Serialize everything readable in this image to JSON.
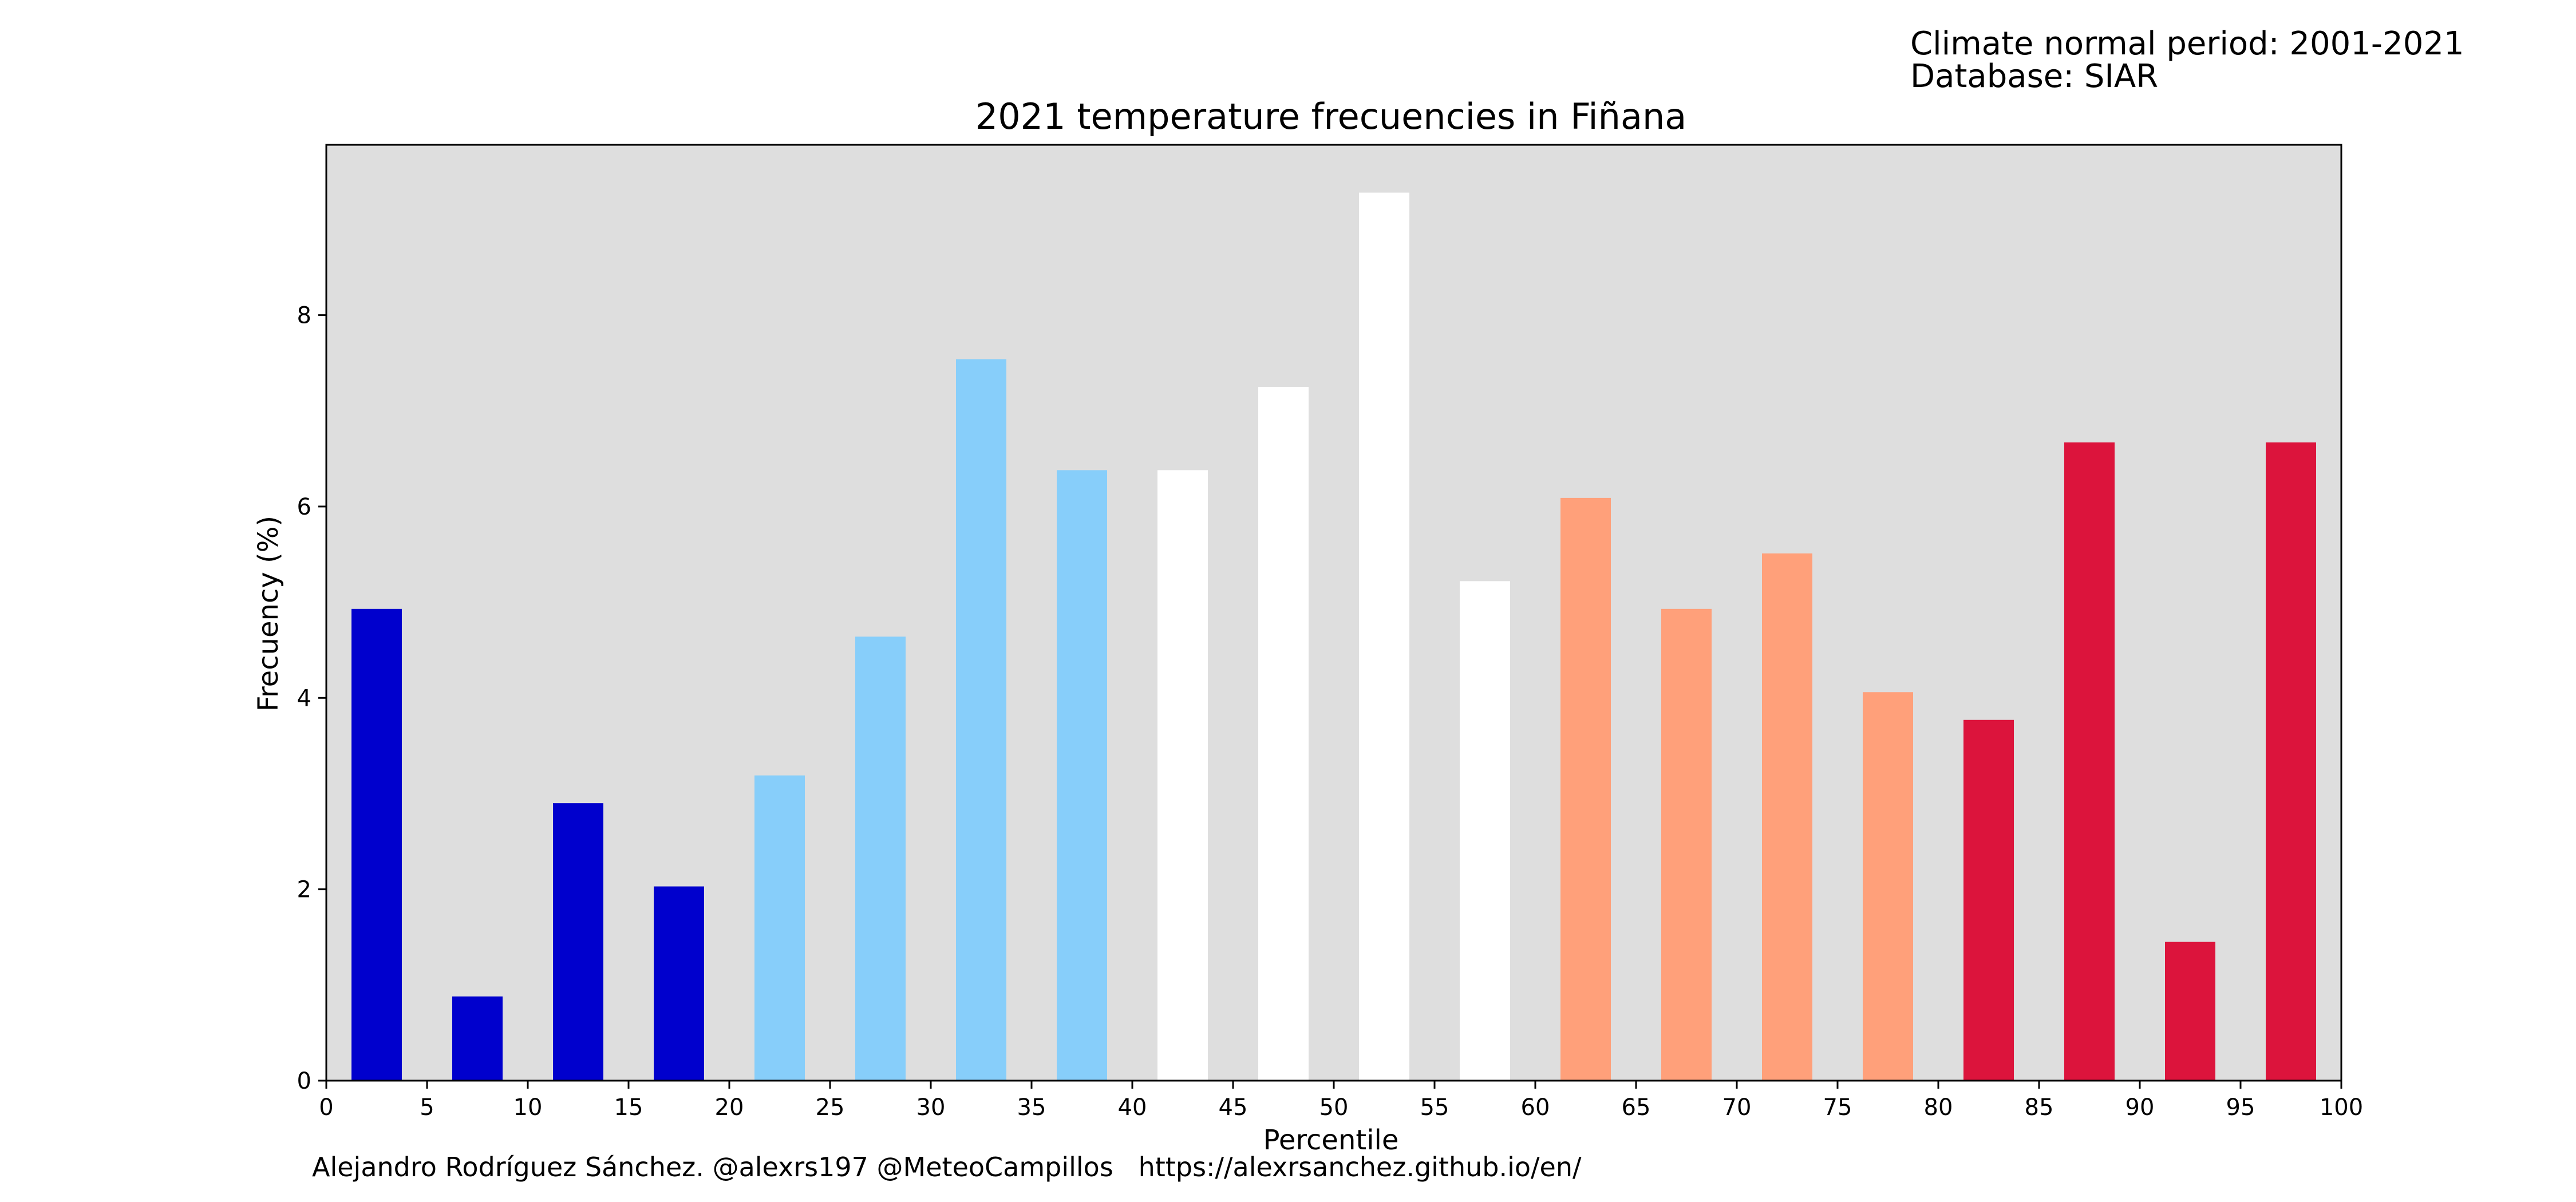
{
  "info": {
    "climate_normal": "Climate normal period: 2001-2021",
    "database": "Database: SIAR"
  },
  "credit": "Alejandro Rodríguez Sánchez. @alexrs197 @MeteoCampillos   https://alexrsanchez.github.io/en/",
  "colors": {
    "background": "#dedede",
    "very_cold": "#0000cd",
    "cold": "#87cefa",
    "normal": "#ffffff",
    "warm": "#ffa07a",
    "very_warm": "#dc143c"
  },
  "chart_data": {
    "type": "bar",
    "title": "2021 temperature frecuencies in Fiñana",
    "xlabel": "Percentile",
    "ylabel": "Frecuency (%)",
    "xlim": [
      0,
      100
    ],
    "ylim": [
      0,
      9.78
    ],
    "xticks": [
      "0",
      "5",
      "10",
      "15",
      "20",
      "25",
      "30",
      "35",
      "40",
      "45",
      "50",
      "55",
      "60",
      "65",
      "70",
      "75",
      "80",
      "85",
      "90",
      "95",
      "100"
    ],
    "yticks": [
      "0",
      "2",
      "4",
      "6",
      "8"
    ],
    "grid": false,
    "bars": [
      {
        "x": 2.5,
        "value": 4.93,
        "color": "#0000cd"
      },
      {
        "x": 7.5,
        "value": 0.88,
        "color": "#0000cd"
      },
      {
        "x": 12.5,
        "value": 2.9,
        "color": "#0000cd"
      },
      {
        "x": 17.5,
        "value": 2.03,
        "color": "#0000cd"
      },
      {
        "x": 22.5,
        "value": 3.19,
        "color": "#87cefa"
      },
      {
        "x": 27.5,
        "value": 4.64,
        "color": "#87cefa"
      },
      {
        "x": 32.5,
        "value": 7.54,
        "color": "#87cefa"
      },
      {
        "x": 37.5,
        "value": 6.38,
        "color": "#87cefa"
      },
      {
        "x": 42.5,
        "value": 6.38,
        "color": "#ffffff"
      },
      {
        "x": 47.5,
        "value": 7.25,
        "color": "#ffffff"
      },
      {
        "x": 52.5,
        "value": 9.28,
        "color": "#ffffff"
      },
      {
        "x": 57.5,
        "value": 5.22,
        "color": "#ffffff"
      },
      {
        "x": 62.5,
        "value": 6.09,
        "color": "#ffa07a"
      },
      {
        "x": 67.5,
        "value": 4.93,
        "color": "#ffa07a"
      },
      {
        "x": 72.5,
        "value": 5.51,
        "color": "#ffa07a"
      },
      {
        "x": 77.5,
        "value": 4.06,
        "color": "#ffa07a"
      },
      {
        "x": 82.5,
        "value": 3.77,
        "color": "#dc143c"
      },
      {
        "x": 87.5,
        "value": 6.67,
        "color": "#dc143c"
      },
      {
        "x": 92.5,
        "value": 1.45,
        "color": "#dc143c"
      },
      {
        "x": 97.5,
        "value": 6.67,
        "color": "#dc143c"
      }
    ]
  }
}
